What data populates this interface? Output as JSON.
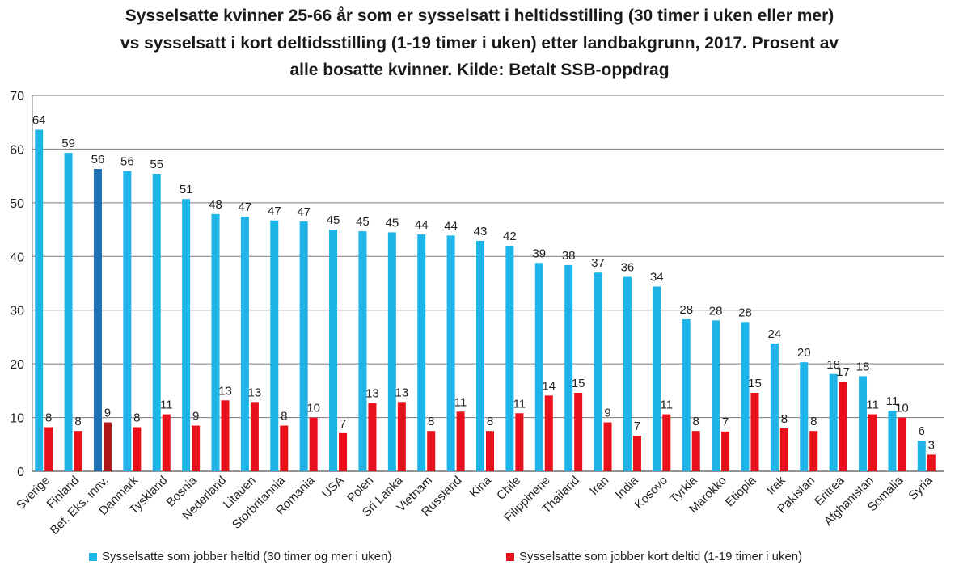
{
  "chart_data": {
    "type": "bar",
    "title": [
      "Sysselsatte  kvinner 25-66 år som er sysselsatt  i  heltidsstilling (30 timer i uken eller mer)",
      "vs sysselsatt i kort deltidsstilling (1-19 timer i uken)  etter landbakgrunn, 2017. Prosent av",
      "alle bosatte kvinner. Kilde: Betalt SSB-oppdrag"
    ],
    "categories": [
      "Sverige",
      "Finland",
      "Bef. Eks. innv.",
      "Danmark",
      "Tyskland",
      "Bosnia",
      "Nederland",
      "Litauen",
      "Storbritannia",
      "Romania",
      "USA",
      "Polen",
      "Sri Lanka",
      "Vietnam",
      "Russland",
      "Kina",
      "Chile",
      "Filippinene",
      "Thailand",
      "Iran",
      "India",
      "Kosovo",
      "Tyrkia",
      "Marokko",
      "Etiopia",
      "Irak",
      "Pakistan",
      "Eritrea",
      "Afghanistan",
      "Somalia",
      "Syria"
    ],
    "series": [
      {
        "name": "Sysselsatte som jobber heltid (30 timer og mer i uken)",
        "color": "#1fb4e8",
        "highlight_color": "#1f6fb5",
        "values": [
          63.6,
          59.3,
          56.3,
          55.9,
          55.4,
          50.7,
          47.9,
          47.4,
          46.7,
          46.5,
          45.0,
          44.7,
          44.5,
          44.1,
          43.9,
          42.9,
          42.0,
          38.8,
          38.4,
          37.0,
          36.2,
          34.4,
          28.3,
          28.1,
          27.8,
          23.8,
          20.3,
          18.1,
          17.7,
          11.3,
          5.7
        ],
        "labels": [
          "64",
          "59",
          "56",
          "56",
          "55",
          "51",
          "48",
          "47",
          "47",
          "47",
          "45",
          "45",
          "45",
          "44",
          "44",
          "43",
          "42",
          "39",
          "38",
          "37",
          "36",
          "34",
          "28",
          "28",
          "28",
          "24",
          "20",
          "18",
          "18",
          "11",
          "6"
        ]
      },
      {
        "name": "Sysselsatte som jobber kort deltid (1-19 timer i uken)",
        "color": "#e8101a",
        "highlight_color": "#b01818",
        "values": [
          8.2,
          7.5,
          9.1,
          8.2,
          10.6,
          8.5,
          13.2,
          12.9,
          8.5,
          10.0,
          7.1,
          12.7,
          12.9,
          7.5,
          11.1,
          7.5,
          10.8,
          14.1,
          14.6,
          9.1,
          6.6,
          10.6,
          7.5,
          7.4,
          14.6,
          8.0,
          7.5,
          16.7,
          10.6,
          10.0,
          3.1
        ],
        "labels": [
          "8",
          "8",
          "9",
          "8",
          "11",
          "9",
          "13",
          "13",
          "8",
          "10",
          "7",
          "13",
          "13",
          "8",
          "11",
          "8",
          "11",
          "14",
          "15",
          "9",
          "7",
          "11",
          "8",
          "7",
          "15",
          "8",
          "8",
          "17",
          "11",
          "10",
          "3"
        ]
      }
    ],
    "highlight_category_index": 2,
    "ylim": [
      0,
      70
    ],
    "yticks": [
      0,
      10,
      20,
      30,
      40,
      50,
      60,
      70
    ],
    "grid": true,
    "legend_position": "bottom",
    "xlabel": "",
    "ylabel": ""
  }
}
